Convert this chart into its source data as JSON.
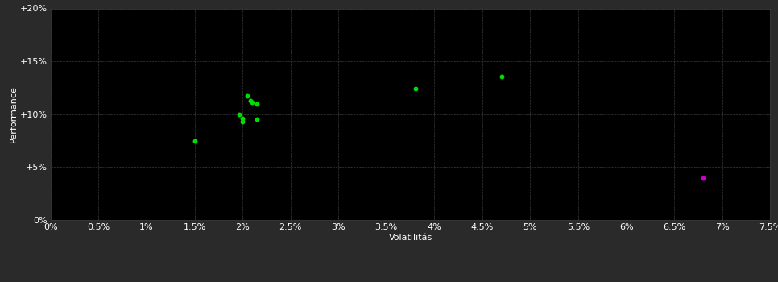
{
  "background_color": "#2a2a2a",
  "plot_bg_color": "#000000",
  "grid_color": "#3a3a3a",
  "text_color": "#ffffff",
  "xlabel": "Volatilitás",
  "ylabel": "Performance",
  "xlim": [
    0.0,
    0.075
  ],
  "ylim": [
    0.0,
    0.2
  ],
  "xticks": [
    0.0,
    0.005,
    0.01,
    0.015,
    0.02,
    0.025,
    0.03,
    0.035,
    0.04,
    0.045,
    0.05,
    0.055,
    0.06,
    0.065,
    0.07,
    0.075
  ],
  "yticks": [
    0.0,
    0.05,
    0.1,
    0.15,
    0.2
  ],
  "ytick_labels": [
    "0%",
    "+5%",
    "+10%",
    "+15%",
    "+20%"
  ],
  "xtick_labels": [
    "0%",
    "0.5%",
    "1%",
    "1.5%",
    "2%",
    "2.5%",
    "3%",
    "3.5%",
    "4%",
    "4.5%",
    "5%",
    "5.5%",
    "6%",
    "6.5%",
    "7%",
    "7.5%"
  ],
  "green_points": [
    [
      0.015,
      0.075
    ],
    [
      0.0197,
      0.1
    ],
    [
      0.02,
      0.096
    ],
    [
      0.0205,
      0.117
    ],
    [
      0.0208,
      0.113
    ],
    [
      0.021,
      0.111
    ],
    [
      0.0215,
      0.11
    ],
    [
      0.0215,
      0.095
    ],
    [
      0.02,
      0.093
    ],
    [
      0.038,
      0.124
    ],
    [
      0.047,
      0.136
    ]
  ],
  "magenta_points": [
    [
      0.068,
      0.04
    ]
  ],
  "green_color": "#00dd00",
  "magenta_color": "#cc00cc",
  "marker_size": 18,
  "font_size": 8,
  "label_font_size": 8,
  "tick_font_size": 8
}
